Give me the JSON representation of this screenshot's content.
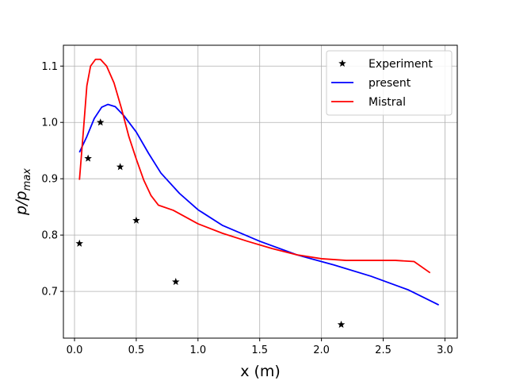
{
  "chart_data": {
    "type": "line",
    "title": "",
    "xlabel": "x (m)",
    "ylabel_base": "p/p",
    "ylabel_sub": "max",
    "xlim": [
      -0.09,
      3.1
    ],
    "ylim": [
      0.617,
      1.137
    ],
    "grid": true,
    "x_ticks": [
      {
        "value": 0.0,
        "label": "0.0"
      },
      {
        "value": 0.5,
        "label": "0.5"
      },
      {
        "value": 1.0,
        "label": "1.0"
      },
      {
        "value": 1.5,
        "label": "1.5"
      },
      {
        "value": 2.0,
        "label": "2.0"
      },
      {
        "value": 2.5,
        "label": "2.5"
      },
      {
        "value": 3.0,
        "label": "3.0"
      }
    ],
    "y_ticks": [
      {
        "value": 0.7,
        "label": "0.7"
      },
      {
        "value": 0.8,
        "label": "0.8"
      },
      {
        "value": 0.9,
        "label": "0.9"
      },
      {
        "value": 1.0,
        "label": "1.0"
      },
      {
        "value": 1.1,
        "label": "1.1"
      }
    ],
    "legend_position": "top-right",
    "series": [
      {
        "name": "Experiment",
        "kind": "scatter",
        "marker": "star",
        "color": "#000000",
        "points": [
          [
            0.04,
            0.785
          ],
          [
            0.11,
            0.936
          ],
          [
            0.21,
            1.0
          ],
          [
            0.37,
            0.921
          ],
          [
            0.5,
            0.826
          ],
          [
            0.82,
            0.717
          ],
          [
            2.16,
            0.641
          ]
        ]
      },
      {
        "name": "present",
        "kind": "line",
        "color": "#0000ff",
        "points": [
          [
            0.04,
            0.947
          ],
          [
            0.1,
            0.975
          ],
          [
            0.16,
            1.007
          ],
          [
            0.22,
            1.027
          ],
          [
            0.27,
            1.032
          ],
          [
            0.33,
            1.028
          ],
          [
            0.4,
            1.012
          ],
          [
            0.5,
            0.983
          ],
          [
            0.6,
            0.945
          ],
          [
            0.7,
            0.91
          ],
          [
            0.85,
            0.874
          ],
          [
            1.0,
            0.845
          ],
          [
            1.2,
            0.817
          ],
          [
            1.5,
            0.789
          ],
          [
            1.8,
            0.765
          ],
          [
            2.1,
            0.747
          ],
          [
            2.4,
            0.727
          ],
          [
            2.7,
            0.703
          ],
          [
            2.95,
            0.676
          ]
        ]
      },
      {
        "name": "Mistral",
        "kind": "line",
        "color": "#ff0000",
        "points": [
          [
            0.04,
            0.898
          ],
          [
            0.07,
            0.98
          ],
          [
            0.1,
            1.065
          ],
          [
            0.13,
            1.1
          ],
          [
            0.17,
            1.112
          ],
          [
            0.21,
            1.112
          ],
          [
            0.26,
            1.1
          ],
          [
            0.32,
            1.07
          ],
          [
            0.38,
            1.025
          ],
          [
            0.44,
            0.975
          ],
          [
            0.5,
            0.935
          ],
          [
            0.56,
            0.898
          ],
          [
            0.62,
            0.87
          ],
          [
            0.68,
            0.853
          ],
          [
            0.8,
            0.844
          ],
          [
            1.0,
            0.82
          ],
          [
            1.2,
            0.803
          ],
          [
            1.4,
            0.789
          ],
          [
            1.6,
            0.776
          ],
          [
            1.8,
            0.765
          ],
          [
            2.0,
            0.758
          ],
          [
            2.2,
            0.755
          ],
          [
            2.4,
            0.755
          ],
          [
            2.6,
            0.755
          ],
          [
            2.75,
            0.753
          ],
          [
            2.88,
            0.733
          ]
        ]
      }
    ]
  }
}
